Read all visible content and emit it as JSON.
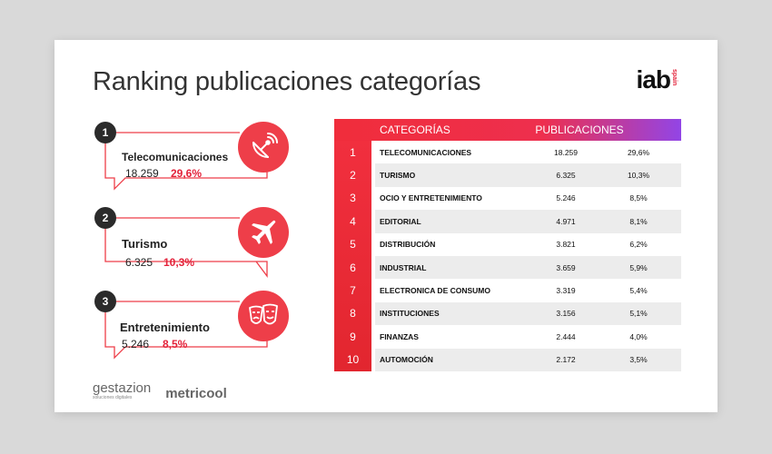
{
  "title": "Ranking publicaciones categorías",
  "logo": {
    "main": "iab",
    "sub": "spain"
  },
  "top_cards": [
    {
      "rank": "1",
      "name": "Telecomunicaciones",
      "count": "18.259",
      "share": "29,6%",
      "icon": "satellite-dish-icon"
    },
    {
      "rank": "2",
      "name": "Turismo",
      "count": "6.325",
      "share": "10,3%",
      "icon": "airplane-icon"
    },
    {
      "rank": "3",
      "name": "Entretenimiento",
      "count": "5.246",
      "share": "8,5%",
      "icon": "theater-masks-icon"
    }
  ],
  "brands": {
    "left": "gestazion",
    "left_tagline": "soluciones digitales",
    "right": "metricool"
  },
  "table": {
    "headers": {
      "category": "CATEGORÍAS",
      "publications": "PUBLICACIONES"
    },
    "rows": [
      {
        "rank": "1",
        "category": "TELECOMUNICACIONES",
        "publications": "18.259",
        "percent": "29,6%"
      },
      {
        "rank": "2",
        "category": "TURISMO",
        "publications": "6.325",
        "percent": "10,3%"
      },
      {
        "rank": "3",
        "category": "OCIO Y ENTRETENIMIENTO",
        "publications": "5.246",
        "percent": "8,5%"
      },
      {
        "rank": "4",
        "category": "EDITORIAL",
        "publications": "4.971",
        "percent": "8,1%"
      },
      {
        "rank": "5",
        "category": "DISTRIBUCIÓN",
        "publications": "3.821",
        "percent": "6,2%"
      },
      {
        "rank": "6",
        "category": "INDUSTRIAL",
        "publications": "3.659",
        "percent": "5,9%"
      },
      {
        "rank": "7",
        "category": "ELECTRONICA DE CONSUMO",
        "publications": "3.319",
        "percent": "5,4%"
      },
      {
        "rank": "8",
        "category": "INSTITUCIONES",
        "publications": "3.156",
        "percent": "5,1%"
      },
      {
        "rank": "9",
        "category": "FINANZAS",
        "publications": "2.444",
        "percent": "4,0%"
      },
      {
        "rank": "10",
        "category": "AUTOMOCIÓN",
        "publications": "2.172",
        "percent": "3,5%"
      }
    ]
  },
  "colors": {
    "accent": "#ee3e49",
    "dark": "#2b2b2b",
    "gradient_end": "#9245e6"
  }
}
